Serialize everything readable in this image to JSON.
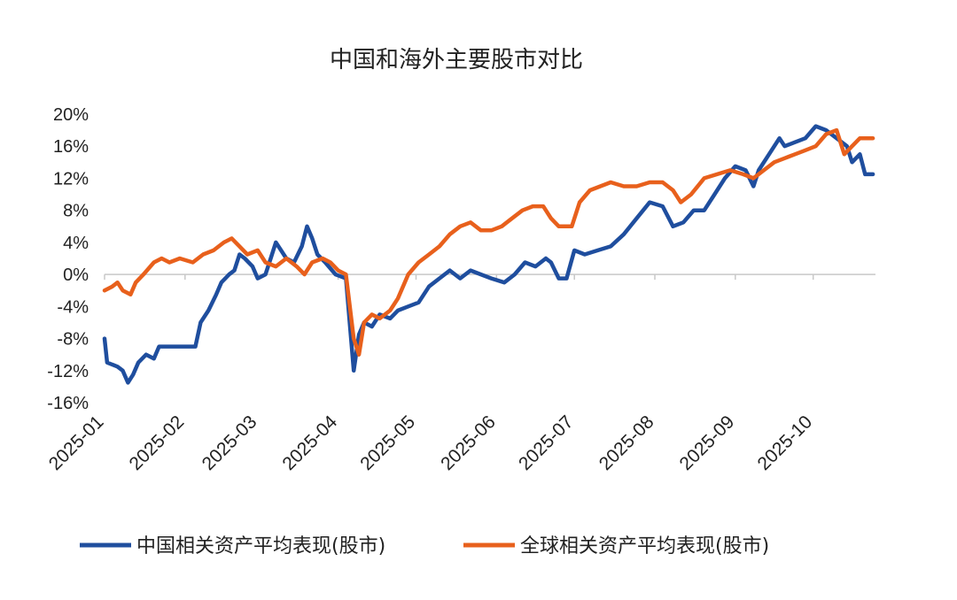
{
  "chart_data": {
    "type": "line",
    "title": "中国和海外主要股市对比",
    "xlabel": "",
    "ylabel": "",
    "ylim": [
      -16,
      20
    ],
    "yticks": [
      "20%",
      "16%",
      "12%",
      "8%",
      "4%",
      "0%",
      "-4%",
      "-8%",
      "-12%",
      "-16%"
    ],
    "xlim": [
      "2025-01",
      "2025-10-25"
    ],
    "x_tick_labels": [
      "2025-01",
      "2025-02",
      "2025-03",
      "2025-04",
      "2025-05",
      "2025-06",
      "2025-07",
      "2025-08",
      "2025-09",
      "2025-10"
    ],
    "grid": false,
    "legend_position": "bottom",
    "series": [
      {
        "name": "中国相关资产平均表现(股市)",
        "color": "#1f4e9e",
        "points": [
          [
            "2025-01-01",
            -8
          ],
          [
            "2025-01-02",
            -11
          ],
          [
            "2025-01-06",
            -11.5
          ],
          [
            "2025-01-08",
            -12
          ],
          [
            "2025-01-10",
            -13.5
          ],
          [
            "2025-01-12",
            -12.5
          ],
          [
            "2025-01-14",
            -11
          ],
          [
            "2025-01-17",
            -10
          ],
          [
            "2025-01-20",
            -10.5
          ],
          [
            "2025-01-22",
            -9
          ],
          [
            "2025-01-25",
            -9
          ],
          [
            "2025-02-01",
            -9
          ],
          [
            "2025-02-05",
            -9
          ],
          [
            "2025-02-07",
            -6
          ],
          [
            "2025-02-10",
            -4.5
          ],
          [
            "2025-02-13",
            -2.5
          ],
          [
            "2025-02-15",
            -1
          ],
          [
            "2025-02-18",
            0
          ],
          [
            "2025-02-20",
            0.5
          ],
          [
            "2025-02-22",
            2.5
          ],
          [
            "2025-02-24",
            2
          ],
          [
            "2025-02-27",
            1
          ],
          [
            "2025-03-01",
            -0.5
          ],
          [
            "2025-03-04",
            0
          ],
          [
            "2025-03-06",
            2
          ],
          [
            "2025-03-08",
            4
          ],
          [
            "2025-03-10",
            3
          ],
          [
            "2025-03-12",
            2
          ],
          [
            "2025-03-15",
            1.5
          ],
          [
            "2025-03-18",
            3.5
          ],
          [
            "2025-03-20",
            6
          ],
          [
            "2025-03-22",
            4.5
          ],
          [
            "2025-03-24",
            2.5
          ],
          [
            "2025-03-27",
            1.5
          ],
          [
            "2025-03-31",
            0
          ],
          [
            "2025-04-04",
            -0.5
          ],
          [
            "2025-04-07",
            -12
          ],
          [
            "2025-04-09",
            -7.5
          ],
          [
            "2025-04-11",
            -6
          ],
          [
            "2025-04-14",
            -6.5
          ],
          [
            "2025-04-17",
            -5
          ],
          [
            "2025-04-21",
            -5.5
          ],
          [
            "2025-04-24",
            -4.5
          ],
          [
            "2025-04-28",
            -4
          ],
          [
            "2025-05-02",
            -3.5
          ],
          [
            "2025-05-06",
            -1.5
          ],
          [
            "2025-05-10",
            -0.5
          ],
          [
            "2025-05-14",
            0.5
          ],
          [
            "2025-05-18",
            -0.5
          ],
          [
            "2025-05-22",
            0.5
          ],
          [
            "2025-05-26",
            0
          ],
          [
            "2025-05-30",
            -0.5
          ],
          [
            "2025-06-04",
            -1
          ],
          [
            "2025-06-08",
            0
          ],
          [
            "2025-06-12",
            1.5
          ],
          [
            "2025-06-16",
            1
          ],
          [
            "2025-06-20",
            2
          ],
          [
            "2025-06-22",
            1.5
          ],
          [
            "2025-06-25",
            -0.5
          ],
          [
            "2025-06-28",
            -0.5
          ],
          [
            "2025-07-01",
            3
          ],
          [
            "2025-07-05",
            2.5
          ],
          [
            "2025-07-10",
            3
          ],
          [
            "2025-07-15",
            3.5
          ],
          [
            "2025-07-20",
            5
          ],
          [
            "2025-07-25",
            7
          ],
          [
            "2025-07-30",
            9
          ],
          [
            "2025-08-04",
            8.5
          ],
          [
            "2025-08-08",
            6
          ],
          [
            "2025-08-12",
            6.5
          ],
          [
            "2025-08-16",
            8
          ],
          [
            "2025-08-20",
            8
          ],
          [
            "2025-08-24",
            10
          ],
          [
            "2025-08-28",
            12
          ],
          [
            "2025-09-01",
            13.5
          ],
          [
            "2025-09-05",
            13
          ],
          [
            "2025-09-08",
            11
          ],
          [
            "2025-09-10",
            13
          ],
          [
            "2025-09-14",
            15
          ],
          [
            "2025-09-18",
            17
          ],
          [
            "2025-09-20",
            16
          ],
          [
            "2025-09-24",
            16.5
          ],
          [
            "2025-09-28",
            17
          ],
          [
            "2025-10-02",
            18.5
          ],
          [
            "2025-10-06",
            18
          ],
          [
            "2025-10-10",
            17
          ],
          [
            "2025-10-14",
            16
          ],
          [
            "2025-10-16",
            14
          ],
          [
            "2025-10-19",
            15
          ],
          [
            "2025-10-21",
            12.5
          ],
          [
            "2025-10-24",
            12.5
          ]
        ]
      },
      {
        "name": "全球相关资产平均表现(股市)",
        "color": "#e8601c",
        "points": [
          [
            "2025-01-01",
            -2
          ],
          [
            "2025-01-04",
            -1.5
          ],
          [
            "2025-01-06",
            -1
          ],
          [
            "2025-01-08",
            -2
          ],
          [
            "2025-01-11",
            -2.5
          ],
          [
            "2025-01-13",
            -1
          ],
          [
            "2025-01-16",
            0
          ],
          [
            "2025-01-20",
            1.5
          ],
          [
            "2025-01-23",
            2
          ],
          [
            "2025-01-26",
            1.5
          ],
          [
            "2025-01-30",
            2
          ],
          [
            "2025-02-04",
            1.5
          ],
          [
            "2025-02-08",
            2.5
          ],
          [
            "2025-02-12",
            3
          ],
          [
            "2025-02-16",
            4
          ],
          [
            "2025-02-19",
            4.5
          ],
          [
            "2025-02-22",
            3.5
          ],
          [
            "2025-02-25",
            2.5
          ],
          [
            "2025-03-01",
            3
          ],
          [
            "2025-03-04",
            1.5
          ],
          [
            "2025-03-08",
            1
          ],
          [
            "2025-03-12",
            2
          ],
          [
            "2025-03-16",
            1
          ],
          [
            "2025-03-19",
            0
          ],
          [
            "2025-03-22",
            1.5
          ],
          [
            "2025-03-26",
            2
          ],
          [
            "2025-03-29",
            1.5
          ],
          [
            "2025-04-01",
            0.5
          ],
          [
            "2025-04-04",
            0
          ],
          [
            "2025-04-07",
            -8
          ],
          [
            "2025-04-09",
            -10
          ],
          [
            "2025-04-11",
            -6
          ],
          [
            "2025-04-14",
            -5
          ],
          [
            "2025-04-17",
            -5.5
          ],
          [
            "2025-04-21",
            -4.5
          ],
          [
            "2025-04-24",
            -3
          ],
          [
            "2025-04-28",
            0
          ],
          [
            "2025-05-02",
            1.5
          ],
          [
            "2025-05-06",
            2.5
          ],
          [
            "2025-05-10",
            3.5
          ],
          [
            "2025-05-14",
            5
          ],
          [
            "2025-05-18",
            6
          ],
          [
            "2025-05-22",
            6.5
          ],
          [
            "2025-05-26",
            5.5
          ],
          [
            "2025-05-30",
            5.5
          ],
          [
            "2025-06-03",
            6
          ],
          [
            "2025-06-07",
            7
          ],
          [
            "2025-06-11",
            8
          ],
          [
            "2025-06-15",
            8.5
          ],
          [
            "2025-06-19",
            8.5
          ],
          [
            "2025-06-22",
            7
          ],
          [
            "2025-06-25",
            6
          ],
          [
            "2025-06-30",
            6
          ],
          [
            "2025-07-03",
            9
          ],
          [
            "2025-07-07",
            10.5
          ],
          [
            "2025-07-11",
            11
          ],
          [
            "2025-07-15",
            11.5
          ],
          [
            "2025-07-20",
            11
          ],
          [
            "2025-07-25",
            11
          ],
          [
            "2025-07-30",
            11.5
          ],
          [
            "2025-08-04",
            11.5
          ],
          [
            "2025-08-08",
            10.5
          ],
          [
            "2025-08-11",
            9
          ],
          [
            "2025-08-15",
            10
          ],
          [
            "2025-08-20",
            12
          ],
          [
            "2025-08-25",
            12.5
          ],
          [
            "2025-08-30",
            13
          ],
          [
            "2025-09-04",
            12.5
          ],
          [
            "2025-09-08",
            12
          ],
          [
            "2025-09-12",
            13
          ],
          [
            "2025-09-16",
            14
          ],
          [
            "2025-09-20",
            14.5
          ],
          [
            "2025-09-24",
            15
          ],
          [
            "2025-09-28",
            15.5
          ],
          [
            "2025-10-02",
            16
          ],
          [
            "2025-10-06",
            17.5
          ],
          [
            "2025-10-10",
            18
          ],
          [
            "2025-10-13",
            15
          ],
          [
            "2025-10-16",
            16
          ],
          [
            "2025-10-19",
            17
          ],
          [
            "2025-10-22",
            17
          ],
          [
            "2025-10-24",
            17
          ]
        ]
      }
    ]
  }
}
